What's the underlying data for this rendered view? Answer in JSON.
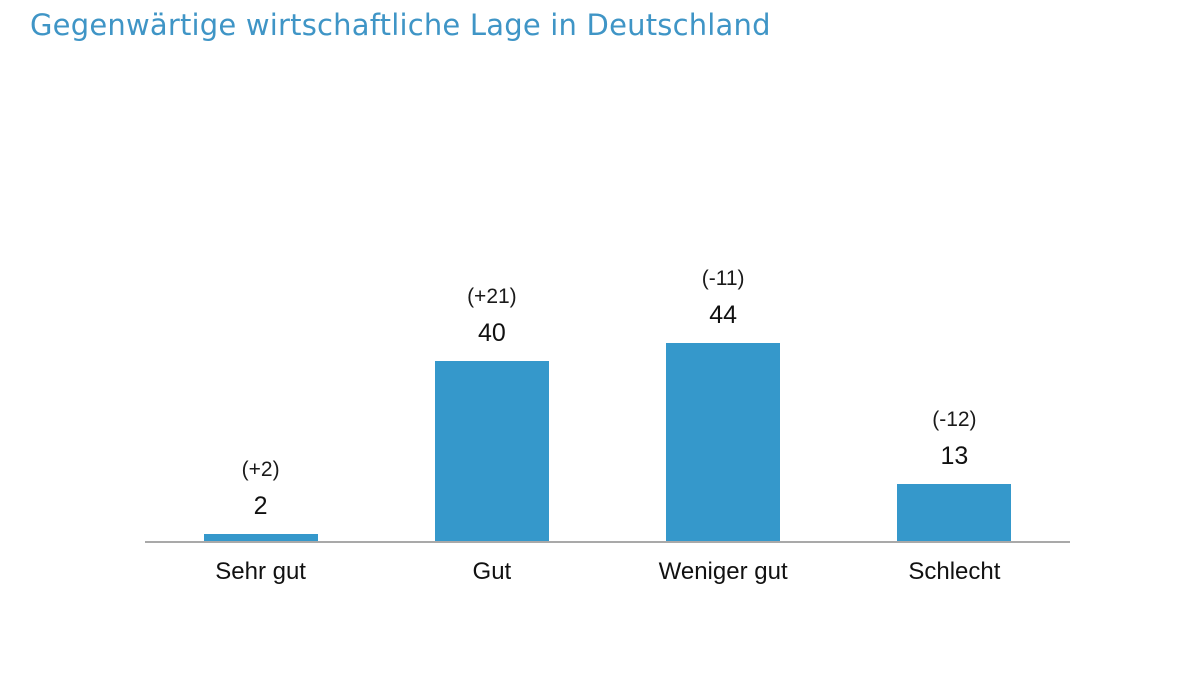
{
  "title": "Gegenwärtige wirtschaftliche Lage in Deutschland",
  "colors": {
    "title_text": "#3f95c6",
    "bar": "#3598cb",
    "axis_line": "#a9a9a9",
    "label_text": "#111111"
  },
  "chart_data": {
    "type": "bar",
    "title": "Gegenwärtige wirtschaftliche Lage in Deutschland",
    "categories": [
      "Sehr gut",
      "Gut",
      "Weniger gut",
      "Schlecht"
    ],
    "values": [
      2,
      40,
      44,
      13
    ],
    "change_annotations": [
      "(+2)",
      "(+21)",
      "(-11)",
      "(-12)"
    ],
    "ylabel": "",
    "xlabel": "",
    "ylim": [
      0,
      50
    ],
    "grid": false,
    "legend": false,
    "bar_color": "#3598cb"
  }
}
